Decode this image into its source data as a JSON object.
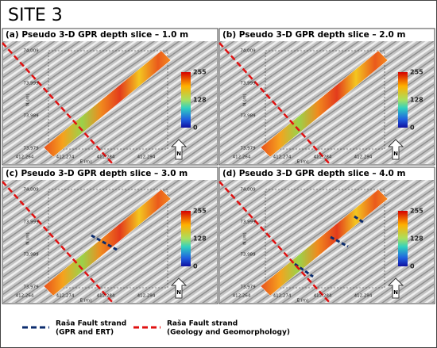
{
  "title": "SITE 3",
  "panels": [
    {
      "label": "(a) Pseudo 3-D GPR depth slice – 1.0 m",
      "y_ticks": [
        "74,009",
        "73,999",
        "73,989",
        "73,979"
      ],
      "x_ticks": [
        "412,264",
        "412,274",
        "412,284",
        "412,294"
      ],
      "y_axis": "N (m)",
      "x_axis": "E (m)",
      "colorbar": [
        "255",
        "128",
        "0"
      ],
      "north": "N"
    },
    {
      "label": "(b) Pseudo 3-D GPR depth slice – 2.0 m",
      "y_ticks": [
        "74,009",
        "73,999",
        "73,989",
        "73,979"
      ],
      "x_ticks": [
        "412,264",
        "412,274",
        "412,284",
        "412,294"
      ],
      "y_axis": "N (m)",
      "x_axis": "E (m)",
      "colorbar": [
        "255",
        "128",
        "0"
      ],
      "north": "N"
    },
    {
      "label": "(c) Pseudo 3-D GPR depth slice – 3.0 m",
      "y_ticks": [
        "74,009",
        "73,999",
        "73,989",
        "73,979"
      ],
      "x_ticks": [
        "412,264",
        "412,274",
        "412,284",
        "412,294"
      ],
      "y_axis": "N (m)",
      "x_axis": "E (m)",
      "colorbar": [
        "255",
        "128",
        "0"
      ],
      "north": "N"
    },
    {
      "label": "(d) Pseudo 3-D GPR depth slice – 4.0 m",
      "y_ticks": [
        "74,009",
        "73,999",
        "73,989",
        "73,979"
      ],
      "x_ticks": [
        "412,264",
        "412,274",
        "412,284",
        "412,294"
      ],
      "y_axis": "N (m)",
      "x_axis": "E (m)",
      "colorbar": [
        "255",
        "128",
        "0"
      ],
      "north": "N"
    }
  ],
  "legend": [
    {
      "label": "Raša Fault strand",
      "detail": "(GPR and ERT)"
    },
    {
      "label": "Raša Fault strand",
      "detail": "(Geology and Geomorphology)"
    }
  ]
}
